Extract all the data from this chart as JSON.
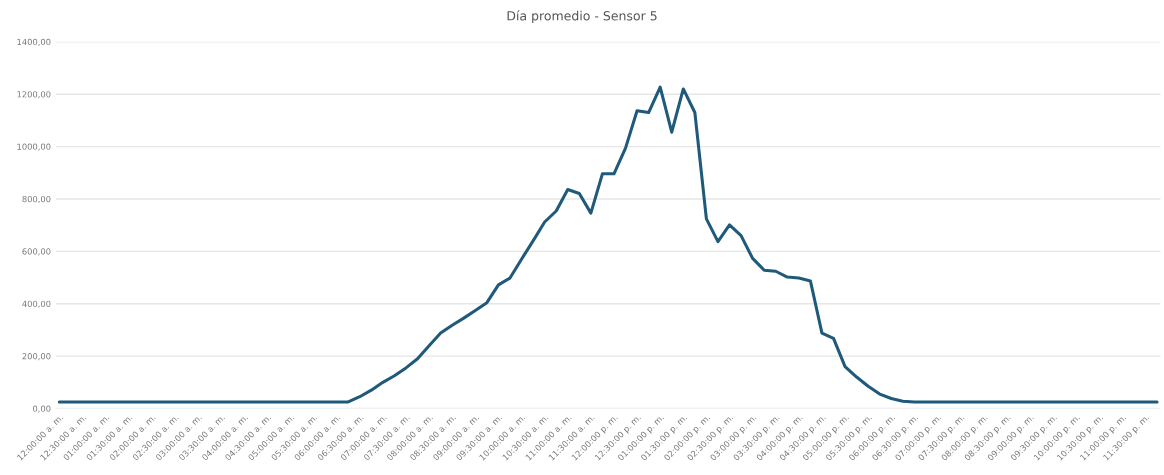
{
  "chart_data": {
    "type": "line",
    "title": "Día promedio - Sensor 5",
    "categories": [
      "12:00:00 a. m.",
      null,
      "12:30:00 a. m.",
      null,
      "01:00:00 a. m.",
      null,
      "01:30:00 a. m.",
      null,
      "02:00:00 a. m.",
      null,
      "02:30:00 a. m.",
      null,
      "03:00:00 a. m.",
      null,
      "03:30:00 a. m.",
      null,
      "04:00:00 a. m.",
      null,
      "04:30:00 a. m.",
      null,
      "05:00:00 a. m.",
      null,
      "05:30:00 a. m.",
      null,
      "06:00:00 a. m.",
      null,
      "06:30:00 a. m.",
      null,
      "07:00:00 a. m.",
      null,
      "07:30:00 a. m.",
      null,
      "08:00:00 a. m.",
      null,
      "08:30:00 a. m.",
      null,
      "09:00:00 a. m.",
      null,
      "09:30:00 a. m.",
      null,
      "10:00:00 a. m.",
      null,
      "10:30:00 a. m.",
      null,
      "11:00:00 a. m.",
      null,
      "11:30:00 a. m.",
      null,
      "12:00:00 p. m.",
      null,
      "12:30:00 p. m.",
      null,
      "01:00:00 p. m.",
      null,
      "01:30:00 p. m.",
      null,
      "02:00:00 p. m.",
      null,
      "02:30:00 p. m.",
      null,
      "03:00:00 p. m.",
      null,
      "03:30:00 p. m.",
      null,
      "04:00:00 p. m.",
      null,
      "04:30:00 p. m.",
      null,
      "05:00:00 p. m.",
      null,
      "05:30:00 p. m.",
      null,
      "06:00:00 p. m.",
      null,
      "06:30:00 p. m.",
      null,
      "07:00:00 p. m.",
      null,
      "07:30:00 p. m.",
      null,
      "08:00:00 p. m.",
      null,
      "08:30:00 p. m.",
      null,
      "09:00:00 p. m.",
      null,
      "09:30:00 p. m.",
      null,
      "10:00:00 p. m.",
      null,
      "10:30:00 p. m.",
      null,
      "11:00:00 p. m.",
      null,
      "11:30:00 p. m.",
      null
    ],
    "series": [
      {
        "color": "#1f5a7a",
        "values": [
          25,
          25,
          25,
          25,
          25,
          25,
          25,
          25,
          25,
          25,
          25,
          25,
          25,
          25,
          25,
          25,
          25,
          25,
          25,
          25,
          25,
          25,
          25,
          25,
          25,
          25,
          45,
          70,
          100,
          125,
          155,
          190,
          240,
          288,
          318,
          345,
          374,
          404,
          472,
          498,
          570,
          640,
          712,
          754,
          836,
          821,
          746,
          896,
          896,
          994,
          1137,
          1130,
          1227,
          1055,
          1220,
          1130,
          724,
          637,
          701,
          660,
          573,
          528,
          524,
          502,
          498,
          487,
          288,
          268,
          160,
          120,
          85,
          55,
          38,
          28,
          25,
          25,
          25,
          25,
          25,
          25,
          25,
          25,
          25,
          25,
          25,
          25,
          25,
          25,
          25,
          25,
          25,
          25,
          25,
          25,
          25,
          25
        ]
      }
    ],
    "ylim": [
      0,
      1400
    ],
    "yticks": [
      {
        "value": 0,
        "label": "0,00"
      },
      {
        "value": 200,
        "label": "200,00"
      },
      {
        "value": 400,
        "label": "400,00"
      },
      {
        "value": 600,
        "label": "600,00"
      },
      {
        "value": 800,
        "label": "800,00"
      },
      {
        "value": 1000,
        "label": "1000,00"
      },
      {
        "value": 1200,
        "label": "1200,00"
      },
      {
        "value": 1400,
        "label": "1400,00"
      }
    ],
    "grid": "y",
    "marker": "none",
    "line_style": "solid"
  }
}
